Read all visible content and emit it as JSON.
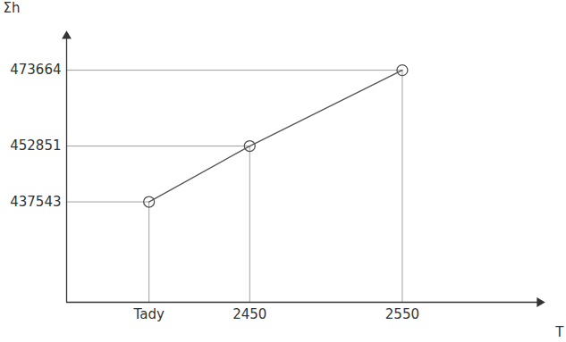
{
  "chart_data": {
    "type": "line",
    "x_label": "T",
    "y_label": "Σh",
    "x": [
      2384,
      2450,
      2550
    ],
    "values": [
      437543,
      452851,
      473664
    ],
    "xlim": [
      2330,
      2640
    ],
    "ylim": [
      410000,
      483000
    ],
    "xticks": [
      {
        "value": 2384,
        "label": "Tady"
      },
      2450,
      2550
    ],
    "yticks": [
      437543,
      452851,
      473664
    ],
    "color": "#555555",
    "marker": "circle",
    "line_style": "solid",
    "grid": true
  }
}
